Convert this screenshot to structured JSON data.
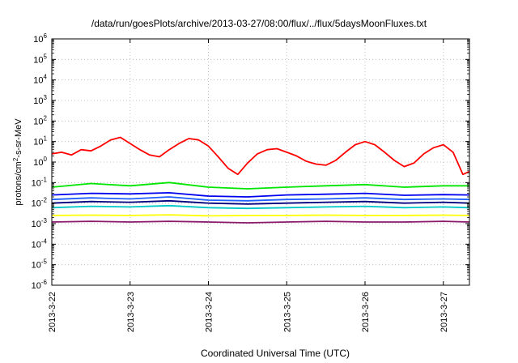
{
  "chart_data": {
    "type": "line",
    "title": "/data/run/goesPlots/archive/2013-03-27/08:00/flux/../flux/5daysMoonFluxes.txt",
    "xlabel": "Coordinated Universal Time (UTC)",
    "ylabel": {
      "prefix": "protons/cm",
      "sup": "2",
      "suffix": "-s-sr-MeV"
    },
    "yscale": "log",
    "ylim": [
      -6,
      6
    ],
    "y_ticks": [
      {
        "exp": -6,
        "base": "10",
        "sup": "-6"
      },
      {
        "exp": -5,
        "base": "10",
        "sup": "-5"
      },
      {
        "exp": -4,
        "base": "10",
        "sup": "-4"
      },
      {
        "exp": -3,
        "base": "10",
        "sup": "-3"
      },
      {
        "exp": -2,
        "base": "10",
        "sup": "-2"
      },
      {
        "exp": -1,
        "base": "10",
        "sup": "-1"
      },
      {
        "exp": 0,
        "base": "10",
        "sup": "0"
      },
      {
        "exp": 1,
        "base": "10",
        "sup": "1"
      },
      {
        "exp": 2,
        "base": "10",
        "sup": "2"
      },
      {
        "exp": 3,
        "base": "10",
        "sup": "3"
      },
      {
        "exp": 4,
        "base": "10",
        "sup": "4"
      },
      {
        "exp": 5,
        "base": "10",
        "sup": "5"
      },
      {
        "exp": 6,
        "base": "10",
        "sup": "6"
      }
    ],
    "xlim": [
      "2013-03-22 00:00",
      "2013-03-27 08:00"
    ],
    "x_ticks": [
      "2013-3-22",
      "2013-3-23",
      "2013-3-24",
      "2013-3-25",
      "2013-3-26",
      "2013-3-27"
    ],
    "grid": true,
    "series": [
      {
        "color": "#ff0000",
        "x": [
          "2013-03-22 00:00",
          "2013-03-22 03:00",
          "2013-03-22 06:00",
          "2013-03-22 09:00",
          "2013-03-22 12:00",
          "2013-03-22 15:00",
          "2013-03-22 18:00",
          "2013-03-22 21:00",
          "2013-03-23 00:00",
          "2013-03-23 03:00",
          "2013-03-23 06:00",
          "2013-03-23 09:00",
          "2013-03-23 12:00",
          "2013-03-23 15:00",
          "2013-03-23 18:00",
          "2013-03-23 21:00",
          "2013-03-24 00:00",
          "2013-03-24 03:00",
          "2013-03-24 06:00",
          "2013-03-24 09:00",
          "2013-03-24 12:00",
          "2013-03-24 15:00",
          "2013-03-24 18:00",
          "2013-03-24 21:00",
          "2013-03-25 00:00",
          "2013-03-25 03:00",
          "2013-03-25 06:00",
          "2013-03-25 09:00",
          "2013-03-25 12:00",
          "2013-03-25 15:00",
          "2013-03-25 18:00",
          "2013-03-25 21:00",
          "2013-03-26 00:00",
          "2013-03-26 03:00",
          "2013-03-26 06:00",
          "2013-03-26 09:00",
          "2013-03-26 12:00",
          "2013-03-26 15:00",
          "2013-03-26 18:00",
          "2013-03-26 21:00",
          "2013-03-27 00:00",
          "2013-03-27 03:00",
          "2013-03-27 06:00",
          "2013-03-27 08:00"
        ],
        "y": [
          2.5,
          3.0,
          2.2,
          4.0,
          3.5,
          6.0,
          12.0,
          16.0,
          8.0,
          4.0,
          2.2,
          1.8,
          4.0,
          8.0,
          14.0,
          12.0,
          6.0,
          1.8,
          0.5,
          0.25,
          0.9,
          2.5,
          4.0,
          4.5,
          3.0,
          2.0,
          1.1,
          0.8,
          0.7,
          1.2,
          3.0,
          7.0,
          10.0,
          7.0,
          3.0,
          1.2,
          0.6,
          0.9,
          2.5,
          5.0,
          7.0,
          3.0,
          0.25,
          0.35
        ]
      },
      {
        "color": "#00e600",
        "x": [
          "2013-03-22 00:00",
          "2013-03-22 12:00",
          "2013-03-23 00:00",
          "2013-03-23 12:00",
          "2013-03-24 00:00",
          "2013-03-24 12:00",
          "2013-03-25 00:00",
          "2013-03-25 12:00",
          "2013-03-26 00:00",
          "2013-03-26 12:00",
          "2013-03-27 00:00",
          "2013-03-27 08:00"
        ],
        "y": [
          0.06,
          0.09,
          0.07,
          0.1,
          0.06,
          0.05,
          0.06,
          0.07,
          0.08,
          0.06,
          0.07,
          0.07
        ]
      },
      {
        "color": "#0000ee",
        "x": [
          "2013-03-22 00:00",
          "2013-03-22 12:00",
          "2013-03-23 00:00",
          "2013-03-23 12:00",
          "2013-03-24 00:00",
          "2013-03-24 12:00",
          "2013-03-25 00:00",
          "2013-03-25 12:00",
          "2013-03-26 00:00",
          "2013-03-26 12:00",
          "2013-03-27 00:00",
          "2013-03-27 08:00"
        ],
        "y": [
          0.025,
          0.03,
          0.028,
          0.032,
          0.022,
          0.02,
          0.025,
          0.027,
          0.03,
          0.024,
          0.026,
          0.025
        ]
      },
      {
        "color": "#2060ff",
        "x": [
          "2013-03-22 00:00",
          "2013-03-22 12:00",
          "2013-03-23 00:00",
          "2013-03-23 12:00",
          "2013-03-24 00:00",
          "2013-03-24 12:00",
          "2013-03-25 00:00",
          "2013-03-25 12:00",
          "2013-03-26 00:00",
          "2013-03-26 12:00",
          "2013-03-27 00:00",
          "2013-03-27 08:00"
        ],
        "y": [
          0.015,
          0.018,
          0.016,
          0.02,
          0.014,
          0.013,
          0.015,
          0.016,
          0.018,
          0.015,
          0.016,
          0.015
        ]
      },
      {
        "color": "#000080",
        "x": [
          "2013-03-22 00:00",
          "2013-03-22 12:00",
          "2013-03-23 00:00",
          "2013-03-23 12:00",
          "2013-03-24 00:00",
          "2013-03-24 12:00",
          "2013-03-25 00:00",
          "2013-03-25 12:00",
          "2013-03-26 00:00",
          "2013-03-26 12:00",
          "2013-03-27 00:00",
          "2013-03-27 08:00"
        ],
        "y": [
          0.01,
          0.012,
          0.011,
          0.013,
          0.01,
          0.009,
          0.01,
          0.011,
          0.012,
          0.01,
          0.011,
          0.01
        ]
      },
      {
        "color": "#00c8c8",
        "x": [
          "2013-03-22 00:00",
          "2013-03-22 12:00",
          "2013-03-23 00:00",
          "2013-03-23 12:00",
          "2013-03-24 00:00",
          "2013-03-24 12:00",
          "2013-03-25 00:00",
          "2013-03-25 12:00",
          "2013-03-26 00:00",
          "2013-03-26 12:00",
          "2013-03-27 00:00",
          "2013-03-27 08:00"
        ],
        "y": [
          0.006,
          0.007,
          0.0065,
          0.0075,
          0.006,
          0.0055,
          0.006,
          0.0065,
          0.007,
          0.006,
          0.0065,
          0.006
        ]
      },
      {
        "color": "#ffff00",
        "x": [
          "2013-03-22 00:00",
          "2013-03-22 12:00",
          "2013-03-23 00:00",
          "2013-03-23 12:00",
          "2013-03-24 00:00",
          "2013-03-24 12:00",
          "2013-03-25 00:00",
          "2013-03-25 12:00",
          "2013-03-26 00:00",
          "2013-03-26 12:00",
          "2013-03-27 00:00",
          "2013-03-27 08:00"
        ],
        "y": [
          0.0025,
          0.0026,
          0.0025,
          0.0027,
          0.0024,
          0.0025,
          0.0025,
          0.0026,
          0.0025,
          0.0025,
          0.0026,
          0.0025
        ]
      },
      {
        "color": "#8b1a6b",
        "x": [
          "2013-03-22 00:00",
          "2013-03-22 12:00",
          "2013-03-23 00:00",
          "2013-03-23 12:00",
          "2013-03-24 00:00",
          "2013-03-24 12:00",
          "2013-03-25 00:00",
          "2013-03-25 12:00",
          "2013-03-26 00:00",
          "2013-03-26 12:00",
          "2013-03-27 00:00",
          "2013-03-27 08:00"
        ],
        "y": [
          0.0012,
          0.0013,
          0.0012,
          0.0013,
          0.0012,
          0.0011,
          0.0012,
          0.0013,
          0.0012,
          0.0012,
          0.0013,
          0.0012
        ]
      }
    ]
  }
}
